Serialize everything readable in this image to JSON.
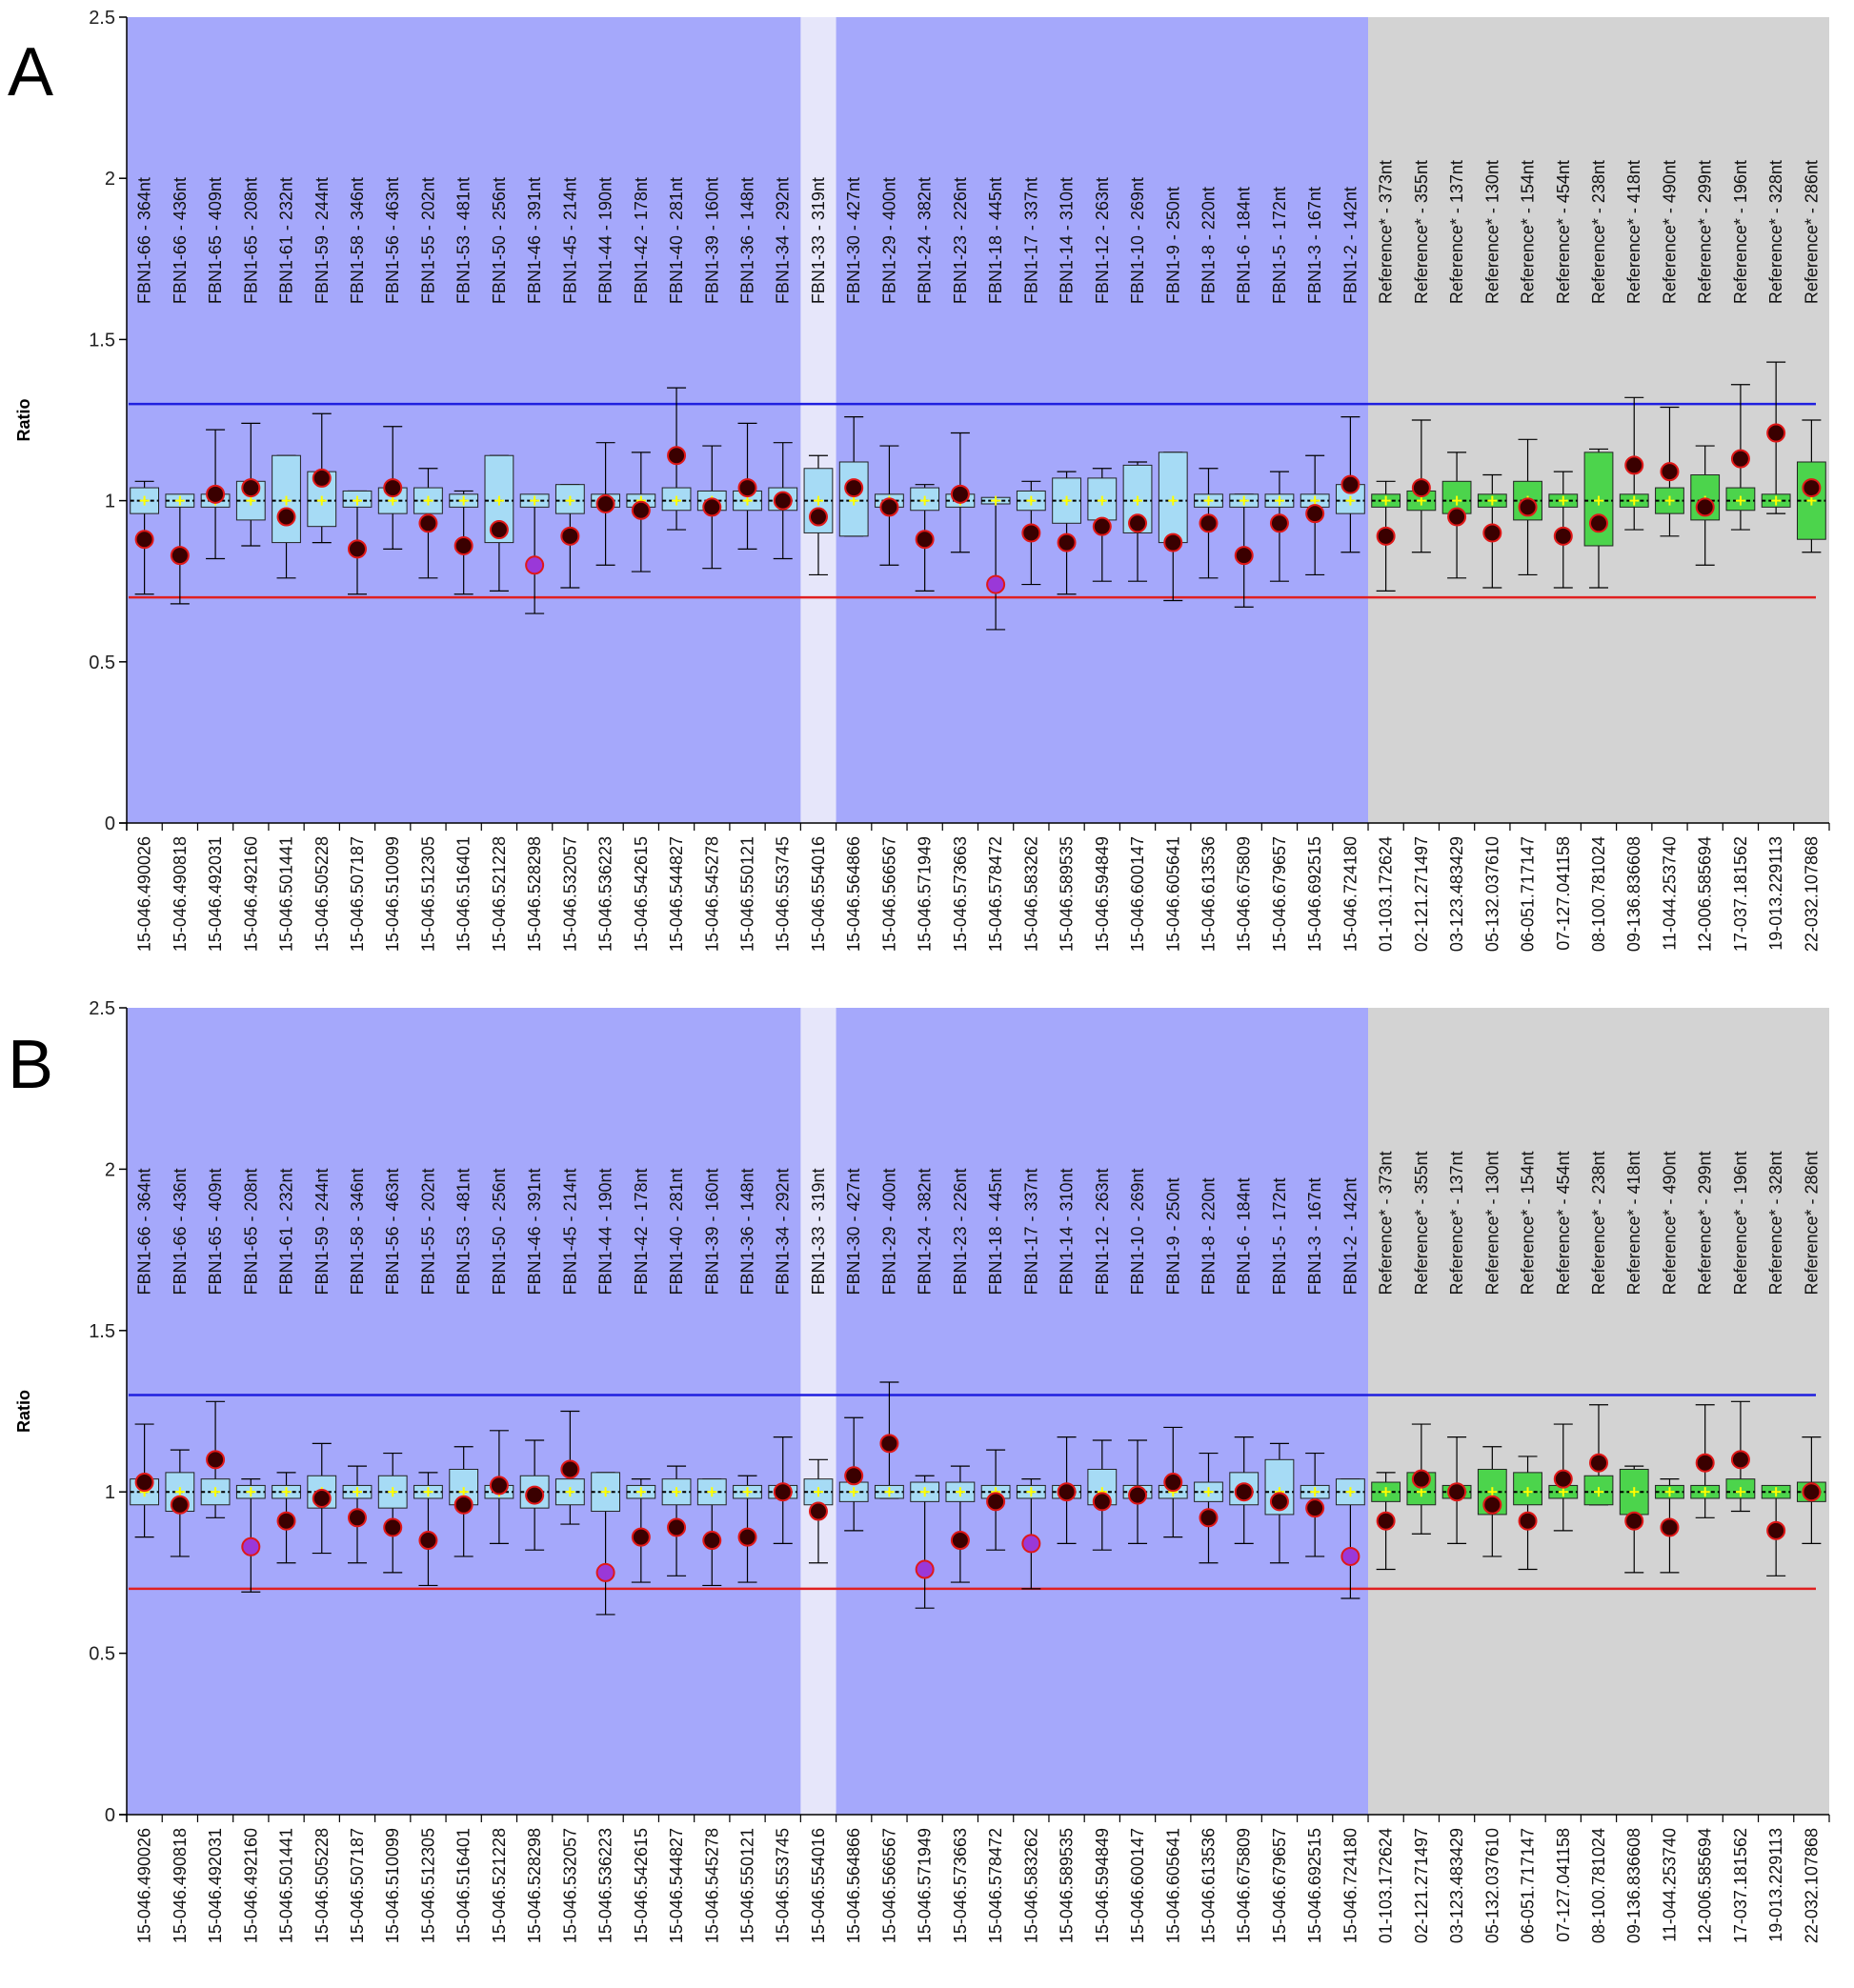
{
  "colors": {
    "test_region": "#a5a8fb",
    "highlight_region": "#e6e6fa",
    "reference_region": "#d3d3d3",
    "box_test": "#a6dbf5",
    "box_ref": "#4cd44c",
    "upper_line": "#1f1fdf",
    "lower_line": "#e02020",
    "dot_normal": "#3a0000",
    "dot_edge": "#e01818",
    "dot_flag": "#9a38d8",
    "dot_flag_edge": "#e01818",
    "median_mark": "#ffff00"
  },
  "chart_data": [
    {
      "panel": "A",
      "type": "box",
      "ylabel": "Ratio",
      "ylim": [
        0,
        2.5
      ],
      "yticks": [
        "0",
        "0.5",
        "1",
        "1.5",
        "2",
        "2.5"
      ],
      "thresholds": {
        "upper": 1.3,
        "lower": 0.7
      },
      "highlight_index": 19,
      "reference_start_index": 35,
      "probes": [
        "FBN1-66 - 364nt",
        "FBN1-66 - 436nt",
        "FBN1-65 - 409nt",
        "FBN1-65 - 208nt",
        "FBN1-61 - 232nt",
        "FBN1-59 - 244nt",
        "FBN1-58 - 346nt",
        "FBN1-56 - 463nt",
        "FBN1-55 - 202nt",
        "FBN1-53 - 481nt",
        "FBN1-50 - 256nt",
        "FBN1-46 - 391nt",
        "FBN1-45 - 214nt",
        "FBN1-44 - 190nt",
        "FBN1-42 - 178nt",
        "FBN1-40 - 281nt",
        "FBN1-39 - 160nt",
        "FBN1-36 - 148nt",
        "FBN1-34 - 292nt",
        "FBN1-33 - 319nt",
        "FBN1-30 - 427nt",
        "FBN1-29 - 400nt",
        "FBN1-24 - 382nt",
        "FBN1-23 - 226nt",
        "FBN1-18 - 445nt",
        "FBN1-17 - 337nt",
        "FBN1-14 - 310nt",
        "FBN1-12 - 263nt",
        "FBN1-10 - 269nt",
        "FBN1-9 - 250nt",
        "FBN1-8 - 220nt",
        "FBN1-6 - 184nt",
        "FBN1-5 - 172nt",
        "FBN1-3 - 167nt",
        "FBN1-2 - 142nt",
        "Reference* - 373nt",
        "Reference* - 355nt",
        "Reference* - 137nt",
        "Reference* - 130nt",
        "Reference* - 154nt",
        "Reference* - 454nt",
        "Reference* - 238nt",
        "Reference* - 418nt",
        "Reference* - 490nt",
        "Reference* - 299nt",
        "Reference* - 196nt",
        "Reference* - 328nt",
        "Reference* - 286nt"
      ],
      "samples": [
        "15-046.490026",
        "15-046.490818",
        "15-046.492031",
        "15-046.492160",
        "15-046.501441",
        "15-046.505228",
        "15-046.507187",
        "15-046.510099",
        "15-046.512305",
        "15-046.516401",
        "15-046.521228",
        "15-046.528298",
        "15-046.532057",
        "15-046.536223",
        "15-046.542615",
        "15-046.544827",
        "15-046.545278",
        "15-046.550121",
        "15-046.553745",
        "15-046.554016",
        "15-046.564866",
        "15-046.566567",
        "15-046.571949",
        "15-046.573663",
        "15-046.578472",
        "15-046.583262",
        "15-046.589535",
        "15-046.594849",
        "15-046.600147",
        "15-046.605641",
        "15-046.613536",
        "15-046.675809",
        "15-046.679657",
        "15-046.692515",
        "15-046.724180",
        "01-103.172624",
        "02-121.271497",
        "03-123.483429",
        "05-132.037610",
        "06-051.717147",
        "07-127.041158",
        "08-100.781024",
        "09-136.836608",
        "11-044.253740",
        "12-006.585694",
        "17-037.181562",
        "19-013.229113",
        "22-032.107868"
      ],
      "box_low": [
        0.96,
        0.98,
        0.98,
        0.94,
        0.87,
        0.92,
        0.98,
        0.96,
        0.96,
        0.98,
        0.87,
        0.98,
        0.96,
        0.98,
        0.98,
        0.97,
        0.97,
        0.97,
        0.97,
        0.9,
        0.89,
        0.98,
        0.97,
        0.98,
        0.99,
        0.97,
        0.93,
        0.94,
        0.9,
        0.87,
        0.98,
        0.98,
        0.98,
        0.98,
        0.96,
        0.98,
        0.97,
        0.96,
        0.98,
        0.94,
        0.98,
        0.86,
        0.98,
        0.96,
        0.94,
        0.97,
        0.98,
        0.88
      ],
      "box_high": [
        1.04,
        1.02,
        1.02,
        1.06,
        1.14,
        1.09,
        1.03,
        1.04,
        1.04,
        1.02,
        1.14,
        1.02,
        1.05,
        1.02,
        1.02,
        1.04,
        1.03,
        1.03,
        1.04,
        1.1,
        1.12,
        1.02,
        1.04,
        1.02,
        1.01,
        1.03,
        1.07,
        1.07,
        1.11,
        1.15,
        1.02,
        1.02,
        1.02,
        1.02,
        1.05,
        1.02,
        1.03,
        1.06,
        1.02,
        1.06,
        1.02,
        1.15,
        1.02,
        1.04,
        1.08,
        1.04,
        1.02,
        1.12
      ],
      "whisker_low": [
        0.71,
        0.68,
        0.82,
        0.86,
        0.76,
        0.87,
        0.71,
        0.85,
        0.76,
        0.71,
        0.72,
        0.65,
        0.73,
        0.8,
        0.78,
        0.91,
        0.79,
        0.85,
        0.82,
        0.77,
        0.89,
        0.8,
        0.72,
        0.84,
        0.6,
        0.74,
        0.71,
        0.75,
        0.75,
        0.69,
        0.76,
        0.67,
        0.75,
        0.77,
        0.84,
        0.72,
        0.84,
        0.76,
        0.73,
        0.77,
        0.73,
        0.73,
        0.91,
        0.89,
        0.8,
        0.91,
        0.96,
        0.84
      ],
      "whisker_high": [
        1.06,
        1.01,
        1.22,
        1.24,
        1.14,
        1.27,
        1.03,
        1.23,
        1.1,
        1.03,
        1.14,
        1.01,
        1.05,
        1.18,
        1.15,
        1.35,
        1.17,
        1.24,
        1.18,
        1.14,
        1.26,
        1.17,
        1.05,
        1.21,
        1.0,
        1.06,
        1.09,
        1.1,
        1.12,
        1.15,
        1.1,
        1.02,
        1.09,
        1.14,
        1.26,
        1.06,
        1.25,
        1.15,
        1.08,
        1.19,
        1.09,
        1.16,
        1.32,
        1.29,
        1.17,
        1.36,
        1.43,
        1.25
      ],
      "points": [
        0.88,
        0.83,
        1.02,
        1.04,
        0.95,
        1.07,
        0.85,
        1.04,
        0.93,
        0.86,
        0.91,
        0.8,
        0.89,
        0.99,
        0.97,
        1.14,
        0.98,
        1.04,
        1.0,
        0.95,
        1.04,
        0.98,
        0.88,
        1.02,
        0.74,
        0.9,
        0.87,
        0.92,
        0.93,
        0.87,
        0.93,
        0.83,
        0.93,
        0.96,
        1.05,
        0.89,
        1.04,
        0.95,
        0.9,
        0.98,
        0.89,
        0.93,
        1.11,
        1.09,
        0.98,
        1.13,
        1.21,
        1.04
      ],
      "flagged": [
        11,
        24
      ]
    },
    {
      "panel": "B",
      "type": "box",
      "ylabel": "Ratio",
      "ylim": [
        0,
        2.5
      ],
      "yticks": [
        "0",
        "0.5",
        "1",
        "1.5",
        "2",
        "2.5"
      ],
      "thresholds": {
        "upper": 1.3,
        "lower": 0.7
      },
      "highlight_index": 19,
      "reference_start_index": 35,
      "probes": [
        "FBN1-66 - 364nt",
        "FBN1-66 - 436nt",
        "FBN1-65 - 409nt",
        "FBN1-65 - 208nt",
        "FBN1-61 - 232nt",
        "FBN1-59 - 244nt",
        "FBN1-58 - 346nt",
        "FBN1-56 - 463nt",
        "FBN1-55 - 202nt",
        "FBN1-53 - 481nt",
        "FBN1-50 - 256nt",
        "FBN1-46 - 391nt",
        "FBN1-45 - 214nt",
        "FBN1-44 - 190nt",
        "FBN1-42 - 178nt",
        "FBN1-40 - 281nt",
        "FBN1-39 - 160nt",
        "FBN1-36 - 148nt",
        "FBN1-34 - 292nt",
        "FBN1-33 - 319nt",
        "FBN1-30 - 427nt",
        "FBN1-29 - 400nt",
        "FBN1-24 - 382nt",
        "FBN1-23 - 226nt",
        "FBN1-18 - 445nt",
        "FBN1-17 - 337nt",
        "FBN1-14 - 310nt",
        "FBN1-12 - 263nt",
        "FBN1-10 - 269nt",
        "FBN1-9 - 250nt",
        "FBN1-8 - 220nt",
        "FBN1-6 - 184nt",
        "FBN1-5 - 172nt",
        "FBN1-3 - 167nt",
        "FBN1-2 - 142nt",
        "Reference* - 373nt",
        "Reference* - 355nt",
        "Reference* - 137nt",
        "Reference* - 130nt",
        "Reference* - 154nt",
        "Reference* - 454nt",
        "Reference* - 238nt",
        "Reference* - 418nt",
        "Reference* - 490nt",
        "Reference* - 299nt",
        "Reference* - 196nt",
        "Reference* - 328nt",
        "Reference* - 286nt"
      ],
      "samples": [
        "15-046.490026",
        "15-046.490818",
        "15-046.492031",
        "15-046.492160",
        "15-046.501441",
        "15-046.505228",
        "15-046.507187",
        "15-046.510099",
        "15-046.512305",
        "15-046.516401",
        "15-046.521228",
        "15-046.528298",
        "15-046.532057",
        "15-046.536223",
        "15-046.542615",
        "15-046.544827",
        "15-046.545278",
        "15-046.550121",
        "15-046.553745",
        "15-046.554016",
        "15-046.564866",
        "15-046.566567",
        "15-046.571949",
        "15-046.573663",
        "15-046.578472",
        "15-046.583262",
        "15-046.589535",
        "15-046.594849",
        "15-046.600147",
        "15-046.605641",
        "15-046.613536",
        "15-046.675809",
        "15-046.679657",
        "15-046.692515",
        "15-046.724180",
        "01-103.172624",
        "02-121.271497",
        "03-123.483429",
        "05-132.037610",
        "06-051.717147",
        "07-127.041158",
        "08-100.781024",
        "09-136.836608",
        "11-044.253740",
        "12-006.585694",
        "17-037.181562",
        "19-013.229113",
        "22-032.107868"
      ],
      "box_low": [
        0.96,
        0.94,
        0.96,
        0.98,
        0.98,
        0.95,
        0.98,
        0.95,
        0.98,
        0.96,
        0.98,
        0.95,
        0.96,
        0.94,
        0.98,
        0.96,
        0.96,
        0.98,
        0.98,
        0.96,
        0.97,
        0.98,
        0.97,
        0.97,
        0.98,
        0.98,
        0.98,
        0.96,
        0.98,
        0.98,
        0.97,
        0.96,
        0.93,
        0.98,
        0.96,
        0.97,
        0.96,
        0.98,
        0.93,
        0.96,
        0.98,
        0.96,
        0.93,
        0.98,
        0.98,
        0.98,
        0.98,
        0.97
      ],
      "box_high": [
        1.04,
        1.06,
        1.04,
        1.02,
        1.02,
        1.05,
        1.02,
        1.05,
        1.02,
        1.07,
        1.02,
        1.05,
        1.04,
        1.06,
        1.02,
        1.04,
        1.04,
        1.02,
        1.02,
        1.04,
        1.03,
        1.02,
        1.03,
        1.03,
        1.02,
        1.02,
        1.02,
        1.07,
        1.02,
        1.02,
        1.03,
        1.06,
        1.1,
        1.02,
        1.04,
        1.03,
        1.06,
        1.02,
        1.07,
        1.06,
        1.02,
        1.05,
        1.07,
        1.02,
        1.02,
        1.04,
        1.02,
        1.03
      ],
      "whisker_low": [
        0.86,
        0.8,
        0.92,
        0.69,
        0.78,
        0.81,
        0.78,
        0.75,
        0.71,
        0.8,
        0.84,
        0.82,
        0.9,
        0.62,
        0.72,
        0.74,
        0.71,
        0.72,
        0.84,
        0.78,
        0.88,
        0.98,
        0.64,
        0.72,
        0.82,
        0.7,
        0.84,
        0.82,
        0.84,
        0.86,
        0.78,
        0.84,
        0.78,
        0.8,
        0.67,
        0.76,
        0.87,
        0.84,
        0.8,
        0.76,
        0.88,
        0.96,
        0.75,
        0.75,
        0.92,
        0.94,
        0.74,
        0.84
      ],
      "whisker_high": [
        1.21,
        1.13,
        1.28,
        1.04,
        1.06,
        1.15,
        1.08,
        1.12,
        1.06,
        1.14,
        1.19,
        1.16,
        1.25,
        1.06,
        1.04,
        1.08,
        1.04,
        1.05,
        1.17,
        1.1,
        1.23,
        1.34,
        1.05,
        1.08,
        1.13,
        1.04,
        1.17,
        1.16,
        1.16,
        1.2,
        1.12,
        1.17,
        1.15,
        1.12,
        1.04,
        1.06,
        1.21,
        1.17,
        1.14,
        1.11,
        1.21,
        1.27,
        1.08,
        1.04,
        1.27,
        1.28,
        1.01,
        1.17
      ],
      "points": [
        1.03,
        0.96,
        1.1,
        0.83,
        0.91,
        0.98,
        0.92,
        0.89,
        0.85,
        0.96,
        1.02,
        0.99,
        1.07,
        0.75,
        0.86,
        0.89,
        0.85,
        0.86,
        1.0,
        0.94,
        1.05,
        1.15,
        0.76,
        0.85,
        0.97,
        0.84,
        1.0,
        0.97,
        0.99,
        1.03,
        0.92,
        1.0,
        0.97,
        0.95,
        0.8,
        0.91,
        1.04,
        1.0,
        0.96,
        0.91,
        1.04,
        1.09,
        0.91,
        0.89,
        1.09,
        1.1,
        0.88,
        1.0
      ],
      "flagged": [
        3,
        13,
        22,
        25,
        34
      ]
    }
  ]
}
